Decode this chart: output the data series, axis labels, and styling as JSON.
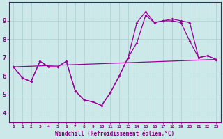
{
  "x_ticks": [
    0,
    1,
    2,
    3,
    4,
    5,
    6,
    7,
    8,
    9,
    10,
    11,
    12,
    13,
    14,
    15,
    16,
    17,
    18,
    19,
    20,
    21,
    22,
    23
  ],
  "line1_x": [
    0,
    1,
    2,
    3,
    4,
    5,
    6,
    7,
    8,
    9,
    10,
    11,
    12,
    13,
    14,
    15,
    16,
    17,
    18,
    19,
    20,
    21,
    22,
    23
  ],
  "line1_y": [
    6.5,
    5.9,
    5.7,
    6.8,
    6.5,
    6.5,
    6.8,
    5.2,
    4.7,
    4.6,
    4.4,
    5.1,
    6.0,
    7.0,
    8.9,
    9.5,
    8.9,
    9.0,
    9.1,
    9.0,
    8.9,
    7.0,
    7.1,
    6.9
  ],
  "line2_x": [
    0,
    1,
    2,
    3,
    4,
    5,
    6,
    7,
    8,
    9,
    10,
    11,
    12,
    13,
    14,
    15,
    16,
    17,
    18,
    19,
    20,
    21,
    22,
    23
  ],
  "line2_y": [
    6.5,
    5.9,
    5.7,
    6.8,
    6.5,
    6.5,
    6.8,
    5.2,
    4.7,
    4.6,
    4.4,
    5.1,
    6.0,
    7.0,
    7.8,
    9.3,
    8.9,
    9.0,
    9.0,
    8.9,
    7.9,
    7.0,
    7.1,
    6.9
  ],
  "trend_x": [
    0,
    23
  ],
  "trend_y": [
    6.5,
    6.9
  ],
  "line_color": "#990099",
  "bg_color": "#cce8e8",
  "grid_color": "#aacfcf",
  "xlabel": "Windchill (Refroidissement éolien,°C)",
  "ylim": [
    3.5,
    10.0
  ],
  "xlim": [
    -0.5,
    23.5
  ],
  "yticks": [
    4,
    5,
    6,
    7,
    8,
    9
  ],
  "label_color": "#800080"
}
